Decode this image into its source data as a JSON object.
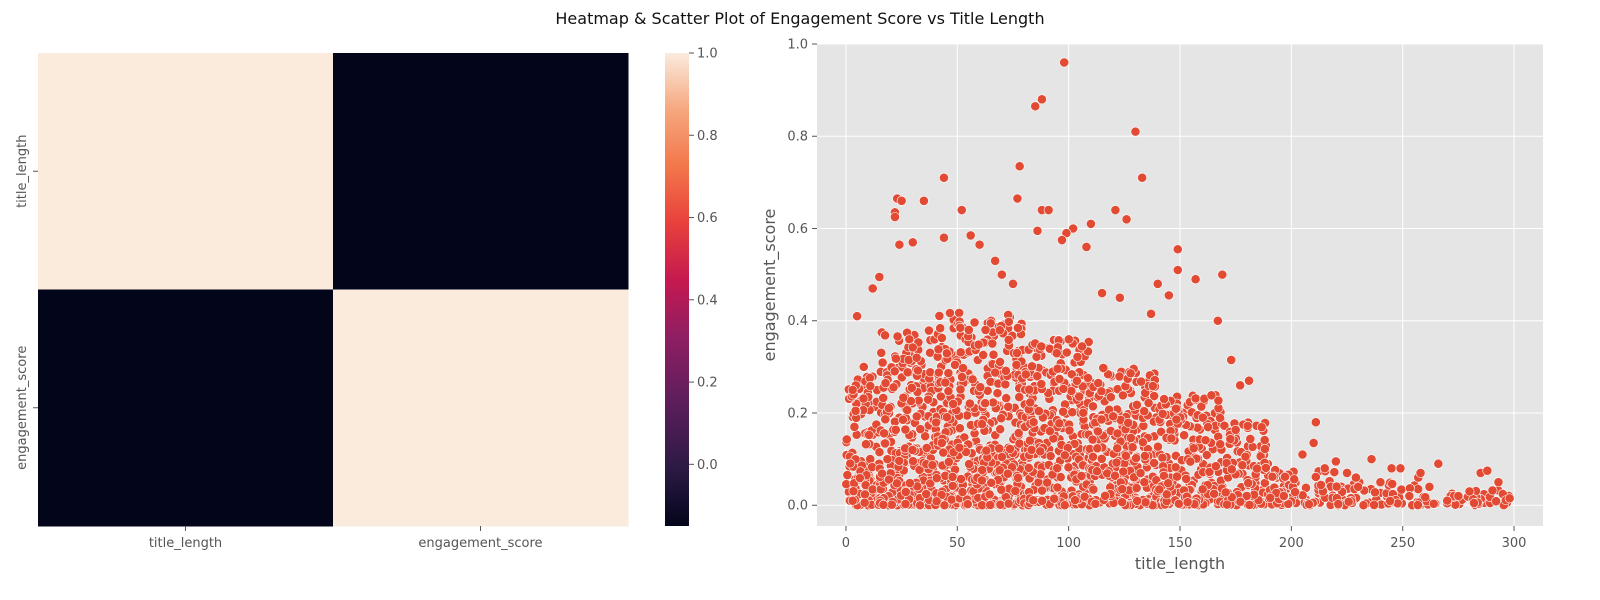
{
  "figure": {
    "title": "Heatmap & Scatter Plot of Engagement Score vs Title Length"
  },
  "chart_data": [
    {
      "type": "heatmap",
      "row_labels": [
        "title_length",
        "engagement_score"
      ],
      "col_labels": [
        "title_length",
        "engagement_score"
      ],
      "values": [
        [
          1.0,
          -0.15
        ],
        [
          -0.15,
          1.0
        ]
      ],
      "colorbar": {
        "min": -0.15,
        "max": 1.0,
        "ticks": [
          "0.0",
          "0.2",
          "0.4",
          "0.6",
          "0.8",
          "1.0"
        ],
        "tick_values": [
          0.0,
          0.2,
          0.4,
          0.6,
          0.8,
          1.0
        ]
      },
      "colormap": "rocket",
      "title": "",
      "xlabel": "",
      "ylabel": ""
    },
    {
      "type": "scatter",
      "xlabel": "title_length",
      "ylabel": "engagement_score",
      "xlim": [
        -13,
        313
      ],
      "ylim": [
        -0.045,
        1.0
      ],
      "xticks": [
        0,
        50,
        100,
        150,
        200,
        250,
        300
      ],
      "yticks": [
        0.0,
        0.2,
        0.4,
        0.6,
        0.8,
        1.0
      ],
      "grid": true,
      "marker_color": "#e24a33",
      "title": "",
      "points": [
        [
          98,
          0.96
        ],
        [
          88,
          0.88
        ],
        [
          85,
          0.865
        ],
        [
          130,
          0.81
        ],
        [
          133,
          0.71
        ],
        [
          78,
          0.735
        ],
        [
          44,
          0.71
        ],
        [
          23,
          0.665
        ],
        [
          25,
          0.66
        ],
        [
          35,
          0.66
        ],
        [
          77,
          0.665
        ],
        [
          52,
          0.64
        ],
        [
          22,
          0.635
        ],
        [
          22,
          0.625
        ],
        [
          88,
          0.64
        ],
        [
          91,
          0.64
        ],
        [
          121,
          0.64
        ],
        [
          126,
          0.62
        ],
        [
          102,
          0.6
        ],
        [
          86,
          0.595
        ],
        [
          99,
          0.59
        ],
        [
          97,
          0.575
        ],
        [
          56,
          0.585
        ],
        [
          44,
          0.58
        ],
        [
          24,
          0.565
        ],
        [
          30,
          0.57
        ],
        [
          60,
          0.565
        ],
        [
          149,
          0.555
        ],
        [
          149,
          0.51
        ],
        [
          157,
          0.49
        ],
        [
          169,
          0.5
        ],
        [
          167,
          0.4
        ],
        [
          173,
          0.315
        ],
        [
          140,
          0.48
        ],
        [
          145,
          0.455
        ],
        [
          137,
          0.415
        ],
        [
          181,
          0.27
        ],
        [
          177,
          0.26
        ],
        [
          211,
          0.18
        ],
        [
          205,
          0.11
        ],
        [
          210,
          0.135
        ],
        [
          220,
          0.095
        ],
        [
          236,
          0.1
        ],
        [
          245,
          0.08
        ],
        [
          249,
          0.08
        ],
        [
          266,
          0.09
        ],
        [
          285,
          0.07
        ],
        [
          288,
          0.075
        ],
        [
          293,
          0.05
        ],
        [
          298,
          0.015
        ],
        [
          280,
          0.03
        ],
        [
          275,
          0.02
        ],
        [
          270,
          0.01
        ],
        [
          262,
          0.04
        ],
        [
          257,
          0.06
        ],
        [
          258,
          0.07
        ],
        [
          240,
          0.05
        ],
        [
          229,
          0.06
        ],
        [
          225,
          0.07
        ],
        [
          215,
          0.08
        ],
        [
          230,
          0.04
        ],
        [
          253,
          0.02
        ],
        [
          282,
          0.005
        ],
        [
          5,
          0.41
        ],
        [
          12,
          0.47
        ],
        [
          15,
          0.495
        ],
        [
          8,
          0.3
        ],
        [
          3,
          0.25
        ],
        [
          110,
          0.61
        ],
        [
          108,
          0.56
        ],
        [
          115,
          0.46
        ],
        [
          123,
          0.45
        ],
        [
          67,
          0.53
        ],
        [
          70,
          0.5
        ],
        [
          75,
          0.48
        ]
      ],
      "density_bands": [
        {
          "x": [
            0,
            15
          ],
          "ymax": 0.28
        },
        {
          "x": [
            15,
            40
          ],
          "ymax": 0.38
        },
        {
          "x": [
            40,
            80
          ],
          "ymax": 0.42
        },
        {
          "x": [
            80,
            110
          ],
          "ymax": 0.36
        },
        {
          "x": [
            110,
            140
          ],
          "ymax": 0.3
        },
        {
          "x": [
            140,
            170
          ],
          "ymax": 0.24
        },
        {
          "x": [
            170,
            190
          ],
          "ymax": 0.18
        },
        {
          "x": [
            190,
            220
          ],
          "ymax": 0.08
        },
        {
          "x": [
            220,
            260
          ],
          "ymax": 0.05
        },
        {
          "x": [
            260,
            298
          ],
          "ymax": 0.035
        }
      ]
    }
  ]
}
